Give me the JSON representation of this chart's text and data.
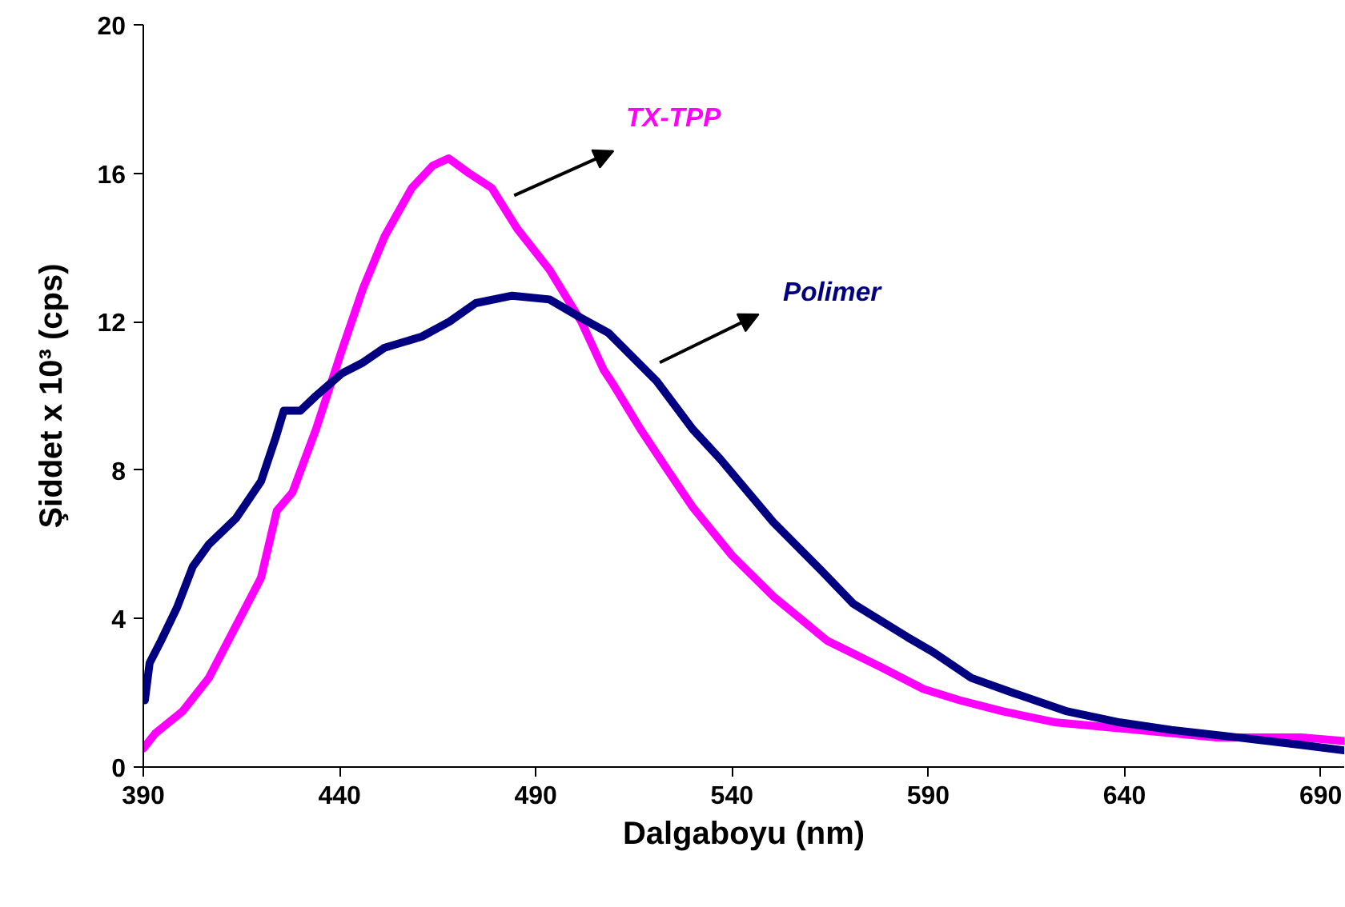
{
  "chart_data": {
    "type": "line",
    "xlabel": "Dalgaboyu (nm)",
    "ylabel": "Şiddet x 10³ (cps)",
    "xlim": [
      390,
      696
    ],
    "xticks": [
      390,
      440,
      490,
      540,
      590,
      640,
      690
    ],
    "ylim": [
      0,
      20
    ],
    "yticks": [
      0,
      4,
      8,
      12,
      16,
      20
    ],
    "grid": false,
    "marker": "none",
    "line_style": "solid",
    "series": [
      {
        "name": "TX-TPP",
        "color": "#ff00ff",
        "x": [
          390,
          393,
          400,
          406.7,
          413.6,
          420,
          424,
          428,
          434,
          440.5,
          446,
          451.5,
          458.4,
          463.7,
          467.8,
          473,
          478.8,
          485.3,
          493.5,
          501.6,
          507.3,
          509.8,
          516.7,
          523.6,
          530,
          540,
          550.5,
          564.3,
          577.8,
          588.8,
          598,
          609,
          622.6,
          643,
          663,
          685,
          696
        ],
        "values": [
          0.5,
          0.9,
          1.5,
          2.4,
          3.8,
          5.1,
          6.9,
          7.4,
          9.1,
          11.2,
          12.9,
          14.3,
          15.6,
          16.2,
          16.4,
          16.0,
          15.6,
          14.5,
          13.4,
          12.0,
          10.7,
          10.3,
          9.1,
          8.0,
          7.0,
          5.7,
          4.6,
          3.4,
          2.7,
          2.1,
          1.8,
          1.5,
          1.2,
          1.0,
          0.8,
          0.8,
          0.7
        ]
      },
      {
        "name": "Polimer",
        "color": "#000080",
        "x": [
          390.4,
          391.6,
          394.5,
          398.6,
          402.6,
          406.7,
          413.6,
          420,
          423.8,
          425.8,
          430,
          434,
          440.5,
          446,
          451.5,
          461,
          468,
          474.7,
          484,
          493.5,
          501.6,
          508.5,
          520.8,
          530,
          537,
          550.5,
          562.7,
          570.9,
          584.7,
          591.2,
          601,
          611.6,
          625.4,
          638.9,
          652,
          668.6,
          684.9,
          695.9
        ],
        "values": [
          1.8,
          2.8,
          3.4,
          4.3,
          5.4,
          6.0,
          6.7,
          7.7,
          8.9,
          9.6,
          9.6,
          10.0,
          10.6,
          10.9,
          11.3,
          11.6,
          12.0,
          12.5,
          12.7,
          12.6,
          12.1,
          11.7,
          10.4,
          9.1,
          8.3,
          6.6,
          5.3,
          4.4,
          3.5,
          3.1,
          2.4,
          2.0,
          1.5,
          1.2,
          1.0,
          0.8,
          0.6,
          0.45
        ]
      }
    ]
  }
}
